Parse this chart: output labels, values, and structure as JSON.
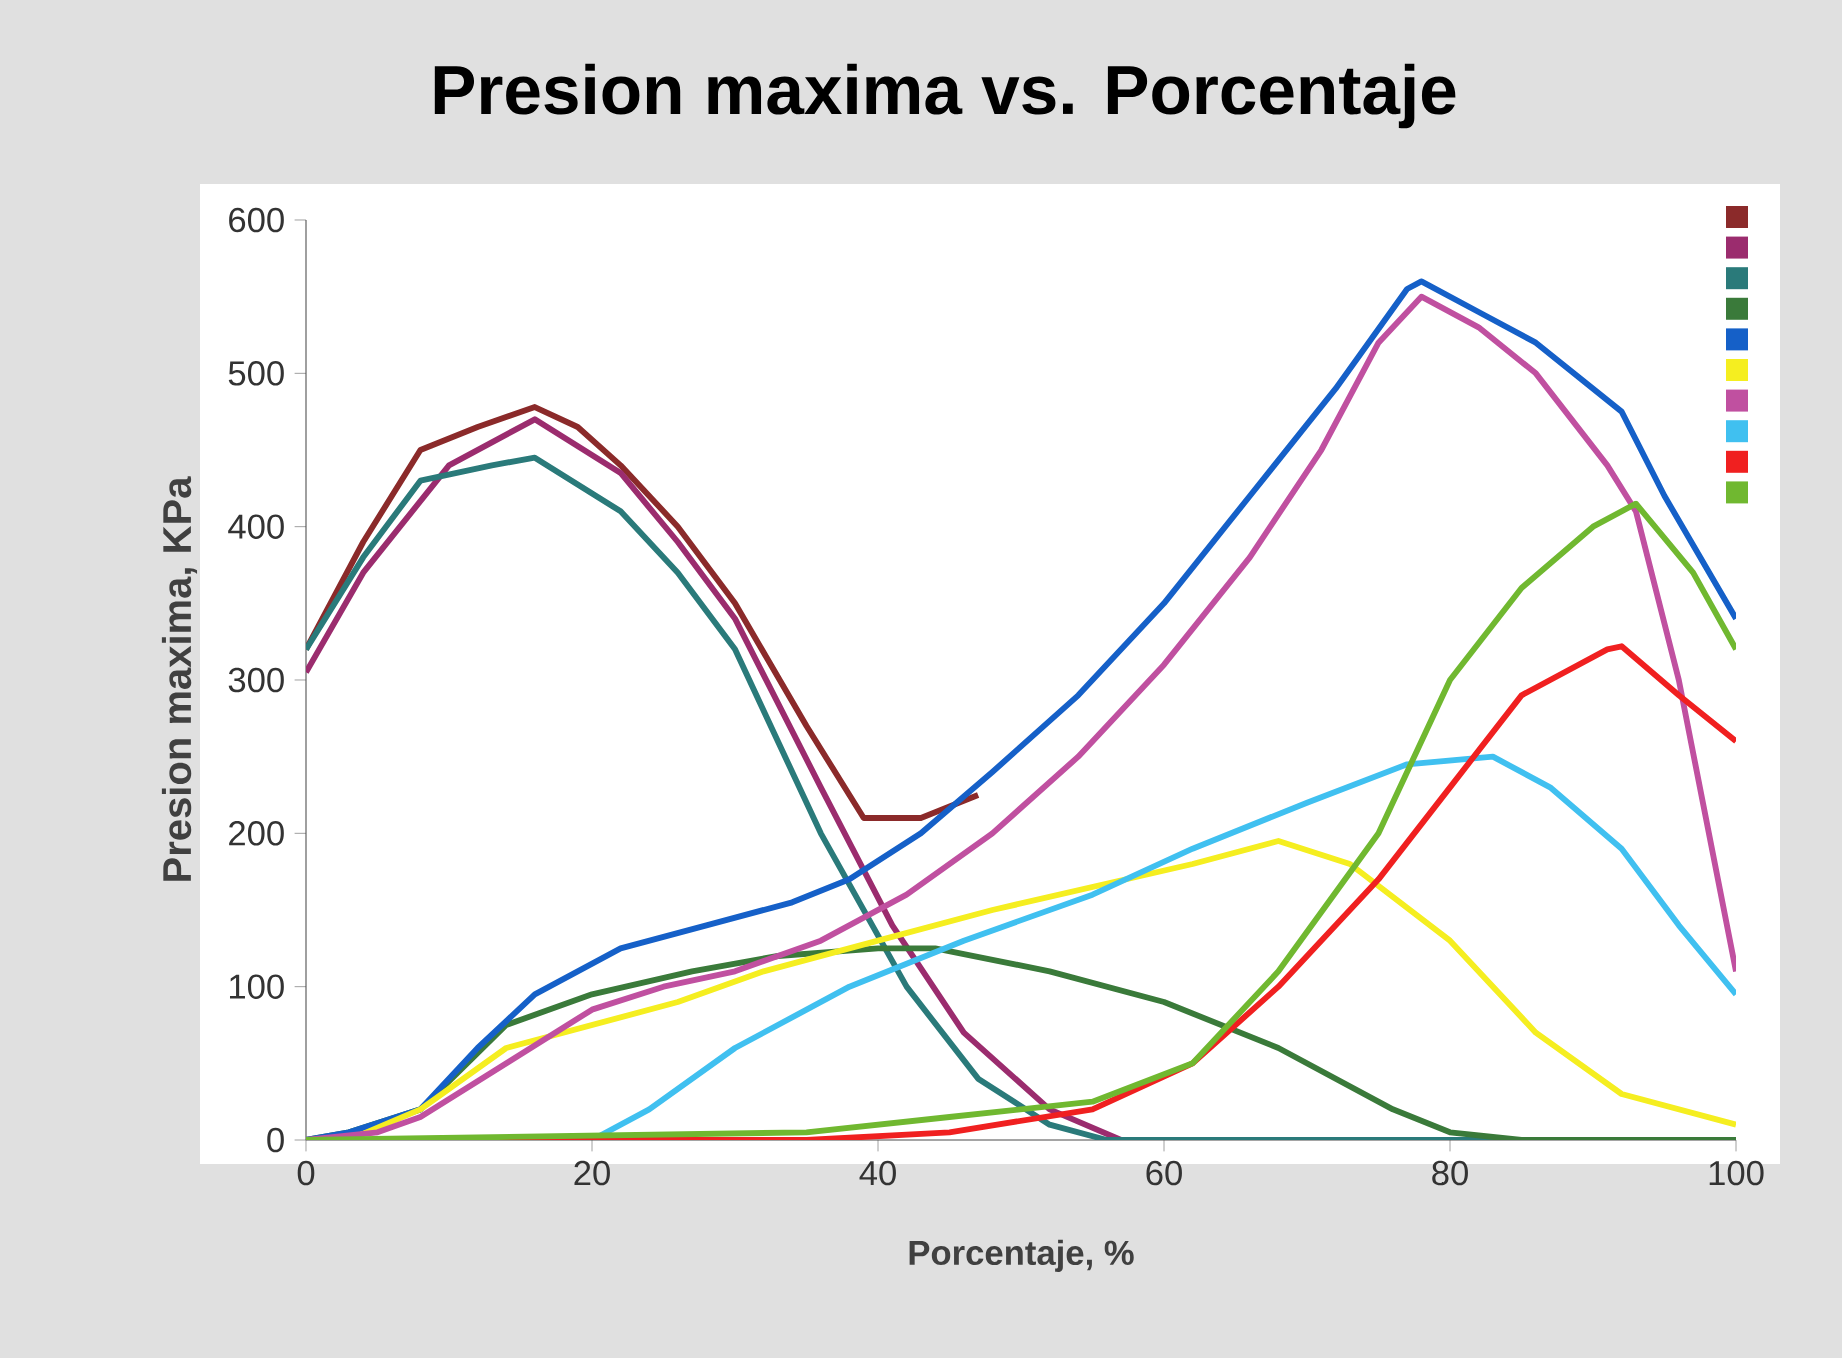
{
  "chart_data": {
    "type": "line",
    "title": "Presion maxima vs. Porcentaje",
    "xlabel": "Porcentaje, %",
    "ylabel": "Presion maxima, KPa",
    "xlim": [
      0,
      100
    ],
    "ylim": [
      0,
      600
    ],
    "xticks": [
      0,
      20,
      40,
      60,
      80,
      100
    ],
    "yticks": [
      0,
      100,
      200,
      300,
      400,
      500,
      600
    ],
    "grid": false,
    "marker": "none",
    "line_style": "solid",
    "series": [
      {
        "color": "#8b2a2a",
        "x": [
          0,
          4,
          8,
          12,
          16,
          19,
          22,
          26,
          30,
          35,
          39,
          43,
          47
        ],
        "values": [
          320,
          390,
          450,
          465,
          478,
          465,
          440,
          400,
          350,
          270,
          210,
          210,
          225
        ]
      },
      {
        "color": "#9b2c6e",
        "x": [
          0,
          4,
          10,
          16,
          22,
          26,
          30,
          36,
          41,
          46,
          52,
          57,
          70,
          100
        ],
        "values": [
          305,
          370,
          440,
          470,
          435,
          390,
          340,
          230,
          140,
          70,
          20,
          0,
          0,
          0
        ]
      },
      {
        "color": "#2a7a7a",
        "x": [
          0,
          4,
          8,
          13,
          16,
          22,
          26,
          30,
          36,
          42,
          47,
          52,
          56,
          70,
          100
        ],
        "values": [
          320,
          380,
          430,
          440,
          445,
          410,
          370,
          320,
          200,
          100,
          40,
          10,
          0,
          0,
          0
        ]
      },
      {
        "color": "#3a7a3a",
        "x": [
          0,
          3,
          8,
          14,
          20,
          27,
          33,
          40,
          44,
          52,
          60,
          68,
          76,
          80,
          85,
          100
        ],
        "values": [
          0,
          5,
          20,
          75,
          95,
          110,
          120,
          125,
          125,
          110,
          90,
          60,
          20,
          5,
          0,
          0
        ]
      },
      {
        "color": "#1560c8",
        "x": [
          0,
          3,
          8,
          12,
          16,
          22,
          28,
          34,
          38,
          43,
          48,
          54,
          60,
          66,
          72,
          77,
          78,
          82,
          86,
          92,
          95,
          100
        ],
        "values": [
          0,
          5,
          20,
          60,
          95,
          125,
          140,
          155,
          170,
          200,
          240,
          290,
          350,
          420,
          490,
          555,
          560,
          540,
          520,
          475,
          420,
          340
        ]
      },
      {
        "color": "#f5ee20",
        "x": [
          0,
          3,
          8,
          14,
          20,
          26,
          32,
          40,
          48,
          55,
          62,
          68,
          73,
          80,
          86,
          92,
          100
        ],
        "values": [
          0,
          0,
          20,
          60,
          75,
          90,
          110,
          130,
          150,
          165,
          180,
          195,
          180,
          130,
          70,
          30,
          10
        ]
      },
      {
        "color": "#c050a0",
        "x": [
          0,
          5,
          8,
          14,
          20,
          25,
          30,
          36,
          42,
          48,
          54,
          60,
          66,
          71,
          75,
          78,
          82,
          86,
          91,
          93,
          96,
          100
        ],
        "values": [
          0,
          5,
          15,
          50,
          85,
          100,
          110,
          130,
          160,
          200,
          250,
          310,
          380,
          450,
          520,
          550,
          530,
          500,
          440,
          410,
          300,
          110
        ]
      },
      {
        "color": "#40c0f0",
        "x": [
          0,
          20,
          24,
          30,
          38,
          46,
          55,
          62,
          70,
          77,
          83,
          87,
          92,
          96,
          100
        ],
        "values": [
          0,
          0,
          20,
          60,
          100,
          130,
          160,
          190,
          220,
          245,
          250,
          230,
          190,
          140,
          95
        ]
      },
      {
        "color": "#f02020",
        "x": [
          0,
          35,
          45,
          55,
          62,
          68,
          75,
          80,
          85,
          91,
          92,
          96,
          100
        ],
        "values": [
          0,
          0,
          5,
          20,
          50,
          100,
          170,
          230,
          290,
          320,
          322,
          290,
          260
        ]
      },
      {
        "color": "#70b830",
        "x": [
          0,
          35,
          45,
          55,
          62,
          68,
          75,
          80,
          85,
          90,
          93,
          97,
          100
        ],
        "values": [
          0,
          5,
          15,
          25,
          50,
          110,
          200,
          300,
          360,
          400,
          415,
          370,
          320
        ]
      }
    ]
  }
}
